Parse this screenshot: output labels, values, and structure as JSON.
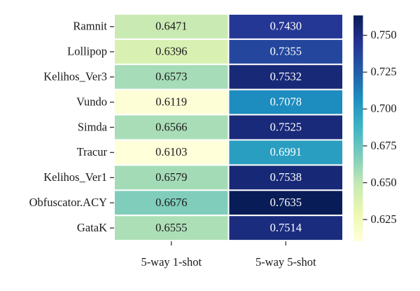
{
  "chart_data": {
    "type": "heatmap",
    "title": "",
    "xlabel": "",
    "ylabel": "",
    "rows": [
      "Ramnit",
      "Lollipop",
      "Kelihos_Ver3",
      "Vundo",
      "Simda",
      "Tracur",
      "Kelihos_Ver1",
      "Obfuscator.ACY",
      "GataK"
    ],
    "columns": [
      "5-way 1-shot",
      "5-way 5-shot"
    ],
    "values": [
      [
        "0.6471",
        "0.7430"
      ],
      [
        "0.6396",
        "0.7355"
      ],
      [
        "0.6573",
        "0.7532"
      ],
      [
        "0.6119",
        "0.7078"
      ],
      [
        "0.6566",
        "0.7525"
      ],
      [
        "0.6103",
        "0.6991"
      ],
      [
        "0.6579",
        "0.7538"
      ],
      [
        "0.6676",
        "0.7635"
      ],
      [
        "0.6555",
        "0.7514"
      ]
    ],
    "colorbar": {
      "min": 0.6103,
      "max": 0.7635,
      "ticks": [
        "0.625",
        "0.650",
        "0.675",
        "0.700",
        "0.725",
        "0.750"
      ],
      "colormap": "YlGnBu",
      "colors": [
        "#ffffd9",
        "#edf8b1",
        "#c7e9b4",
        "#7fcdbb",
        "#41b6c4",
        "#1d91c0",
        "#225ea8",
        "#253494",
        "#081d58"
      ]
    },
    "grid": false,
    "legend": "colorbar-right"
  }
}
